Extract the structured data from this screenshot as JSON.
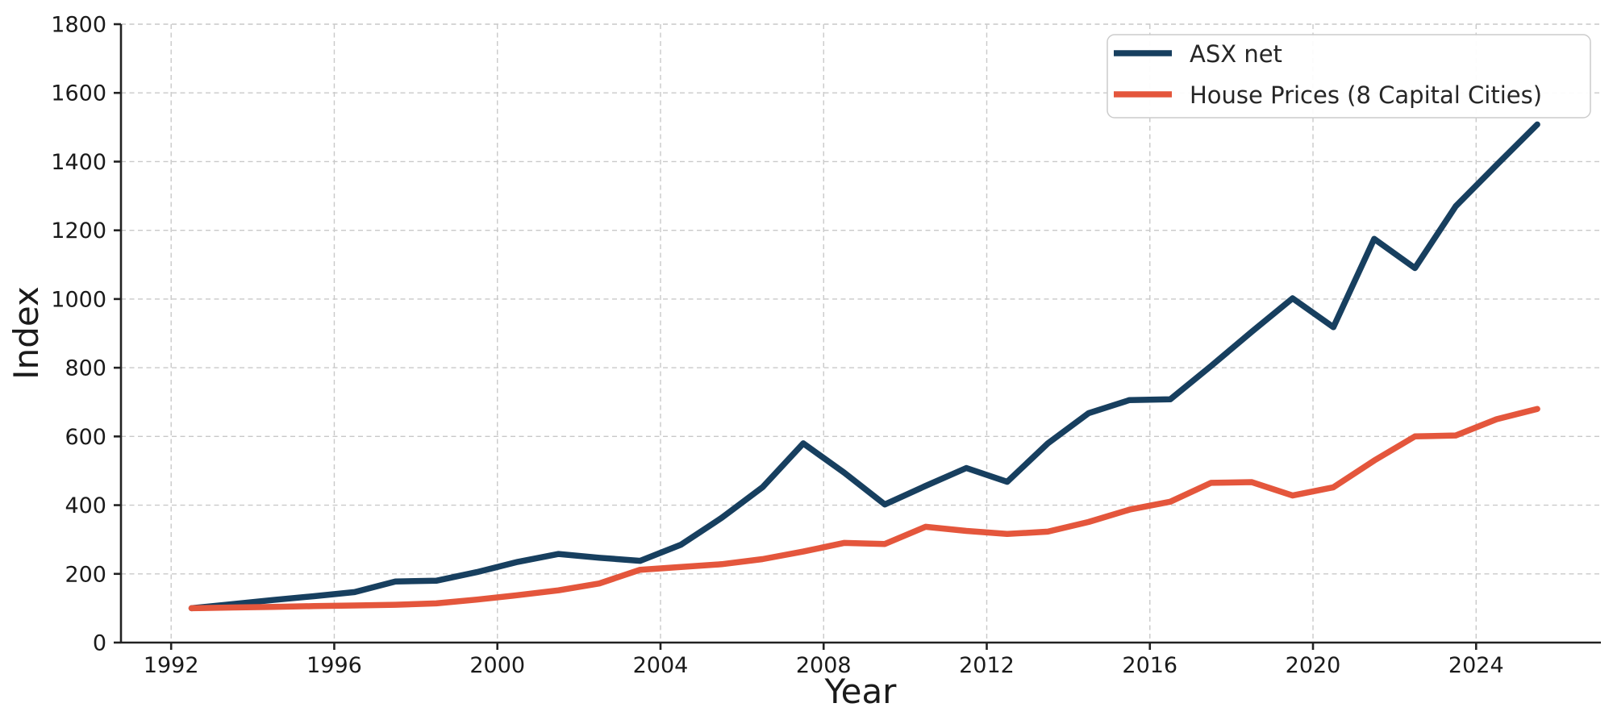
{
  "chart_data": {
    "type": "line",
    "title": "",
    "xlabel": "Year",
    "ylabel": "Index",
    "x": [
      1992.5,
      1993.5,
      1994.5,
      1995.5,
      1996.5,
      1997.5,
      1998.5,
      1999.5,
      2000.5,
      2001.5,
      2002.5,
      2003.5,
      2004.5,
      2005.5,
      2006.5,
      2007.5,
      2008.5,
      2009.5,
      2010.5,
      2011.5,
      2012.5,
      2013.5,
      2014.5,
      2015.5,
      2016.5,
      2017.5,
      2018.5,
      2019.5,
      2020.5,
      2021.5,
      2022.5,
      2023.5,
      2024.5,
      2025.5
    ],
    "series": [
      {
        "name": "ASX net",
        "color": "#173f5f",
        "values": [
          100,
          112,
          124,
          135,
          147,
          178,
          180,
          205,
          235,
          258,
          247,
          238,
          285,
          363,
          452,
          580,
          495,
          402,
          456,
          508,
          468,
          580,
          668,
          706,
          708,
          805,
          905,
          1002,
          918,
          1175,
          1090,
          1270,
          1390,
          1508
        ]
      },
      {
        "name": "House Prices (8 Capital Cities)",
        "color": "#e4563c",
        "values": [
          100,
          102,
          104,
          106,
          108,
          110,
          114,
          125,
          138,
          152,
          172,
          212,
          220,
          228,
          243,
          265,
          290,
          287,
          337,
          325,
          316,
          323,
          351,
          387,
          410,
          465,
          467,
          428,
          452,
          530,
          600,
          603,
          650,
          680
        ]
      }
    ],
    "xlim": [
      1990.77,
      2027.06
    ],
    "ylim": [
      0,
      1800
    ],
    "xticks": [
      "1992",
      "1996",
      "2000",
      "2004",
      "2008",
      "2012",
      "2016",
      "2020",
      "2024"
    ],
    "yticks": [
      "0",
      "200",
      "400",
      "600",
      "800",
      "1000",
      "1200",
      "1400",
      "1600",
      "1800"
    ],
    "grid": "dashed",
    "legend_position": "upper right"
  },
  "styles": {
    "grid_color": "#c9c9c9",
    "spine_color": "#222222",
    "tick_color": "#222222",
    "text_color": "#1a1a1a",
    "legend_border_color": "#cccccc",
    "legend_bg_color": "#ffffff",
    "background_color": "#ffffff"
  }
}
